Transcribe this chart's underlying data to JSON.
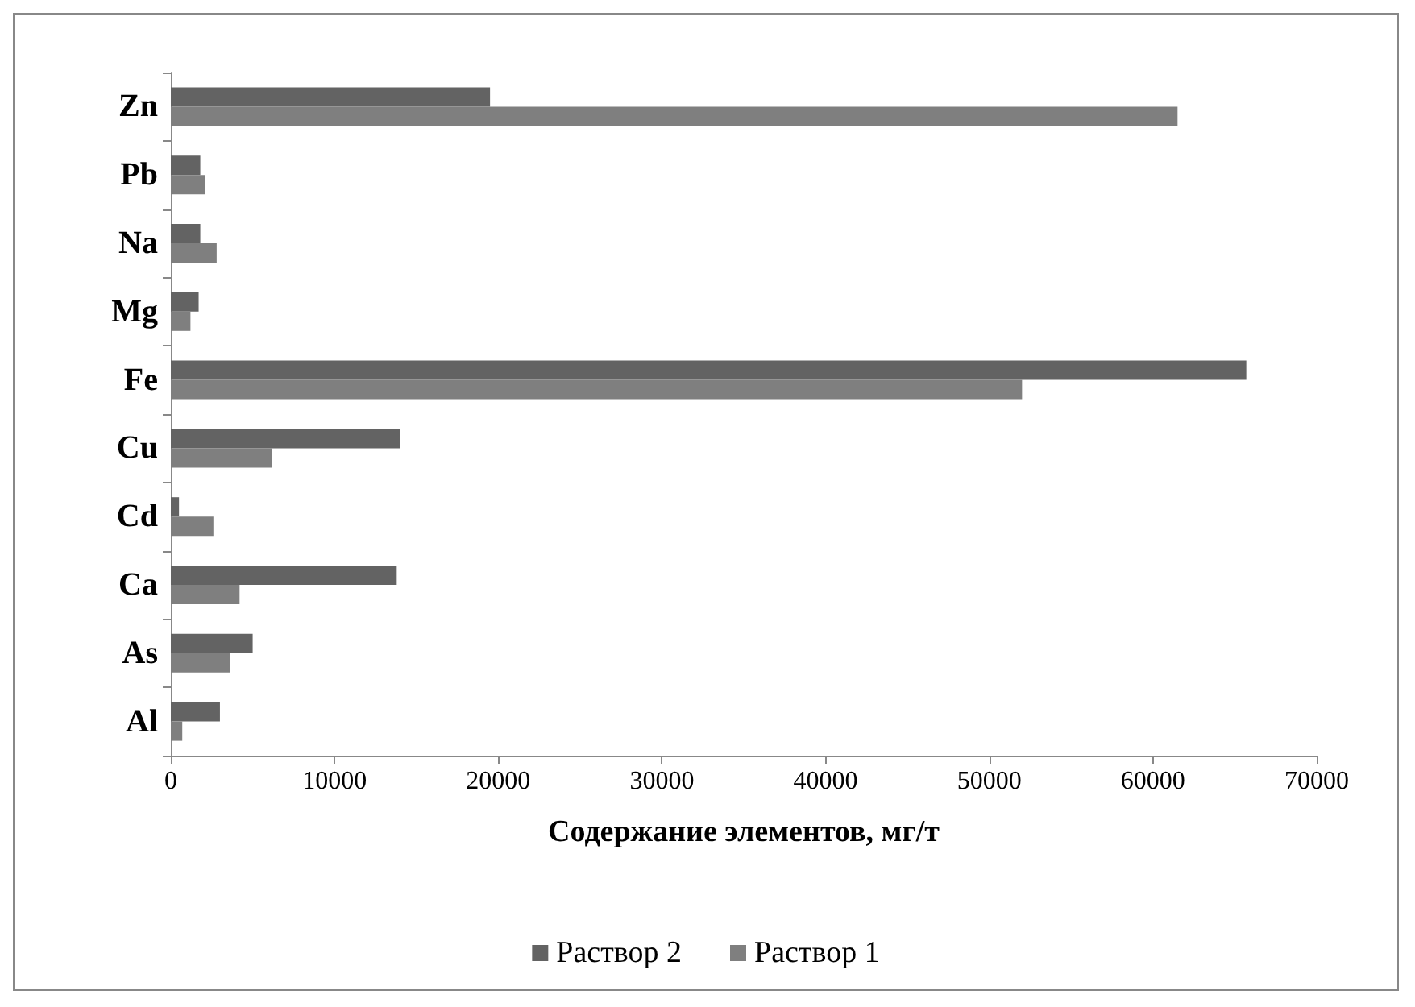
{
  "chart_data": {
    "type": "bar",
    "orientation": "horizontal",
    "xlabel": "Содержание элементов, мг/т",
    "categories": [
      "Zn",
      "Pb",
      "Na",
      "Mg",
      "Fe",
      "Cu",
      "Cd",
      "Ca",
      "As",
      "Al"
    ],
    "series": [
      {
        "name": "Раствор 2",
        "color": "#636363",
        "values": [
          19500,
          1800,
          1800,
          1700,
          65700,
          14000,
          500,
          13800,
          5000,
          3000
        ]
      },
      {
        "name": "Раствор 1",
        "color": "#7f7f7f",
        "values": [
          61500,
          2100,
          2800,
          1200,
          52000,
          6200,
          2600,
          4200,
          3600,
          700
        ]
      }
    ],
    "xlim": [
      0,
      70000
    ],
    "xticks": [
      0,
      10000,
      20000,
      30000,
      40000,
      50000,
      60000,
      70000
    ],
    "grid": false,
    "legend": "bottom"
  }
}
